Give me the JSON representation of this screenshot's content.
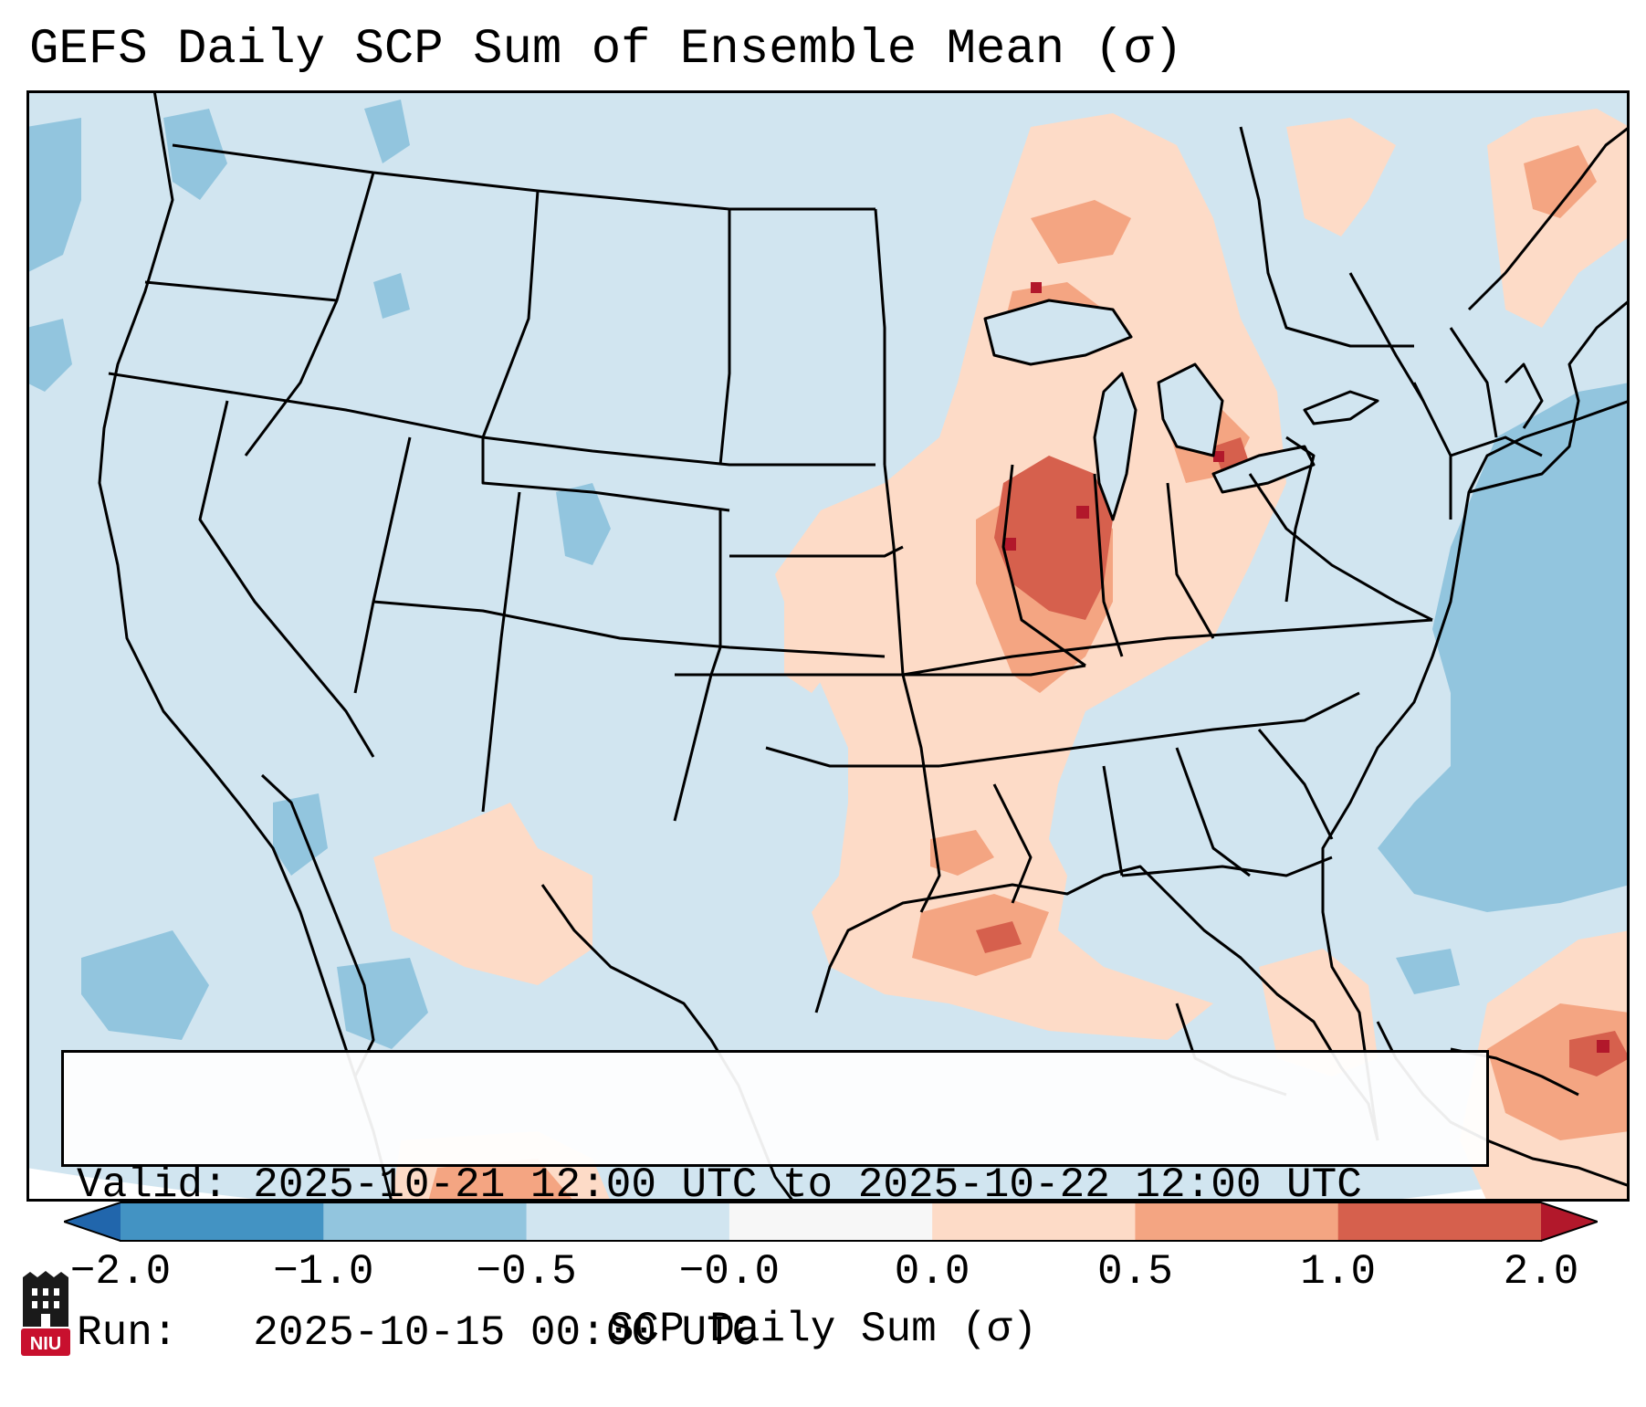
{
  "title": "GEFS Daily SCP Sum of Ensemble Mean (σ)",
  "info": {
    "valid_label": "Valid:",
    "valid_value": "2025-10-21 12:00 UTC to 2025-10-22 12:00 UTC",
    "run_label": "Run:",
    "run_value": "2025-10-15 00:00 UTC"
  },
  "colorbar": {
    "label": "SCP Daily Sum (σ)",
    "ticks": [
      "−2.0",
      "−1.0",
      "−0.5",
      "−0.0",
      "0.0",
      "0.5",
      "1.0",
      "2.0"
    ],
    "bins": [
      {
        "range": "-2.0 to -1.0",
        "color": "#4393c3"
      },
      {
        "range": "-1.0 to -0.5",
        "color": "#92c5de"
      },
      {
        "range": "-0.5 to -0.0",
        "color": "#d1e5f0"
      },
      {
        "range": "-0.0 to 0.0",
        "color": "#f7f7f7"
      },
      {
        "range": "0.0 to 0.5",
        "color": "#fddbc7"
      },
      {
        "range": "0.5 to 1.0",
        "color": "#f4a582"
      },
      {
        "range": "1.0 to 2.0",
        "color": "#d6604d"
      }
    ],
    "under_color": "#2166ac",
    "over_color": "#b2182b"
  },
  "map": {
    "region": "Contiguous United States",
    "field": "SCP daily sum anomaly",
    "highlights": [
      {
        "area": "Illinois / Indiana",
        "level": "1.0 to 2.0"
      },
      {
        "area": "Lower Mississippi Valley",
        "level": "0.0 to 0.5"
      },
      {
        "area": "Louisiana coast",
        "level": "0.5 to 1.0"
      },
      {
        "area": "Western Atlantic",
        "level": "-1.0 to -0.5"
      }
    ]
  },
  "logo": {
    "text": "NIU",
    "color": "#c8102e"
  }
}
